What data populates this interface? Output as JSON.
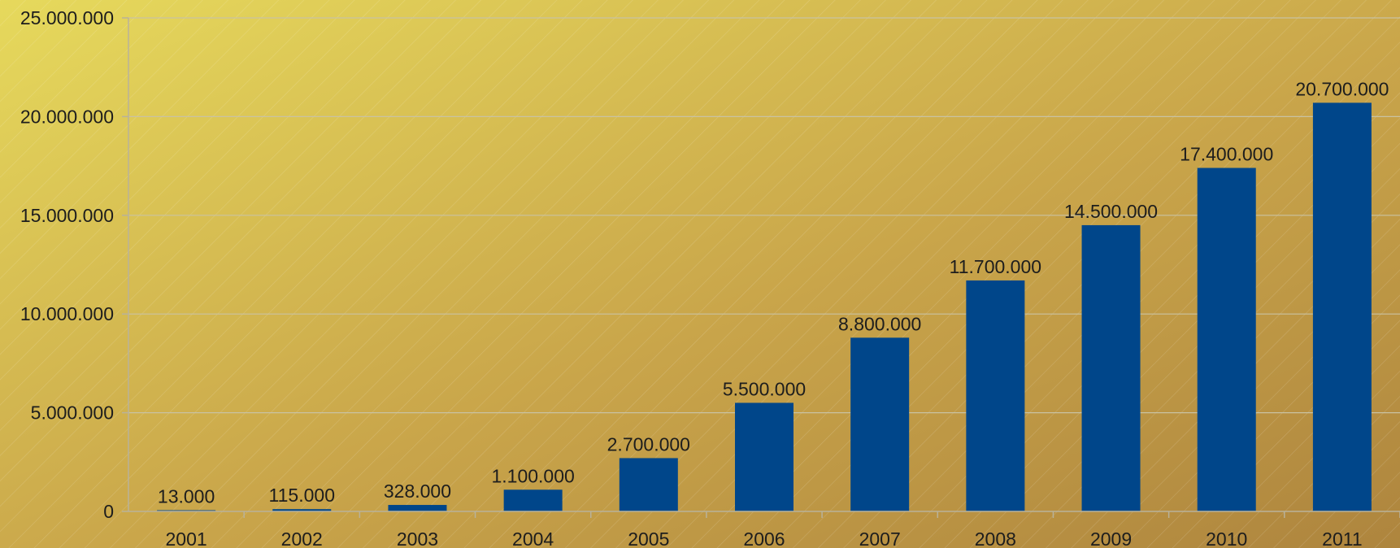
{
  "chart_data": {
    "type": "bar",
    "title": "",
    "xlabel": "",
    "ylabel": "",
    "categories": [
      "2001",
      "2002",
      "2003",
      "2004",
      "2005",
      "2006",
      "2007",
      "2008",
      "2009",
      "2010",
      "2011"
    ],
    "values": [
      13000,
      115000,
      328000,
      1100000,
      2700000,
      5500000,
      8800000,
      11700000,
      14500000,
      17400000,
      20700000
    ],
    "data_labels": [
      "13.000",
      "115.000",
      "328.000",
      "1.100.000",
      "2.700.000",
      "5.500.000",
      "8.800.000",
      "11.700.000",
      "14.500.000",
      "17.400.000",
      "20.700.000"
    ],
    "ylim": [
      0,
      25000000
    ],
    "y_ticks": [
      0,
      5000000,
      10000000,
      15000000,
      20000000,
      25000000
    ],
    "y_tick_labels": [
      "0",
      "5.000.000",
      "10.000.000",
      "15.000.000",
      "20.000.000",
      "25.000.000"
    ],
    "grid": true,
    "legend": "none",
    "colors": {
      "bar": "#00468a",
      "background_start": "#e6d95c",
      "background_end": "#ae853e",
      "text": "#1d1d1d"
    }
  }
}
